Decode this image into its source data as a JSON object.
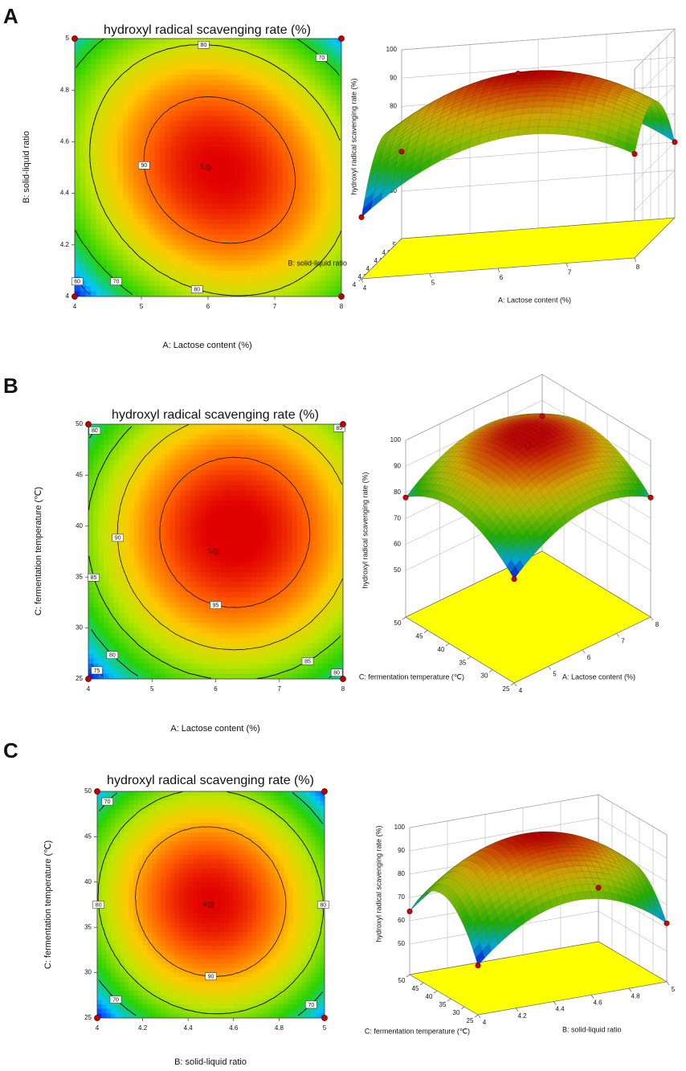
{
  "chart_data": [
    {
      "type": "contour",
      "panel": "A",
      "title": "hydroxyl radical scavenging rate (%)",
      "xlabel": "A: Lactose content (%)",
      "ylabel": "B: solid-liquid ratio",
      "xlim": [
        4,
        8
      ],
      "ylim": [
        4,
        5
      ],
      "xticks": [
        4,
        5,
        6,
        7,
        8
      ],
      "yticks": [
        4,
        4.2,
        4.4,
        4.6,
        4.8,
        5
      ],
      "points": {
        "x": [
          4,
          8,
          4,
          8,
          6
        ],
        "y": [
          4,
          4,
          5,
          5,
          4.5
        ],
        "z": [
          55,
          70,
          64,
          60,
          95
        ]
      },
      "center_label": "5",
      "contour_labels": [
        80,
        70,
        90,
        80,
        70,
        60
      ]
    },
    {
      "type": "surface",
      "xlabel": "A: Lactose content (%)",
      "ylabel": "B: solid-liquid ratio",
      "zlabel": "hydroxyl radical scavenging rate (%)",
      "xlim": [
        4,
        8
      ],
      "ylim": [
        4,
        5
      ],
      "zlim": [
        50,
        100
      ],
      "xticks": [
        4,
        5,
        6,
        7,
        8
      ],
      "yticks": [
        4,
        4.2,
        4.4,
        4.6,
        4.8,
        5
      ],
      "zticks": [
        50,
        60,
        70,
        80,
        90,
        100
      ],
      "points": {
        "x": [
          4,
          8,
          4,
          8,
          6
        ],
        "y": [
          4,
          4,
          5,
          5,
          4.5
        ],
        "z": [
          55,
          70,
          64,
          60,
          95
        ]
      }
    },
    {
      "type": "contour",
      "panel": "B",
      "title": "hydroxyl radical scavenging rate (%)",
      "xlabel": "A: Lactose content (%)",
      "ylabel": "C: fermentation temperature (℃)",
      "xlim": [
        4,
        8
      ],
      "ylim": [
        25,
        50
      ],
      "xticks": [
        4,
        5,
        6,
        7,
        8
      ],
      "yticks": [
        25,
        30,
        35,
        40,
        45,
        50
      ],
      "points": {
        "x": [
          4,
          8,
          4,
          8,
          6
        ],
        "y": [
          25,
          25,
          50,
          50,
          37.5
        ],
        "z": [
          72,
          78,
          78,
          84,
          98
        ]
      },
      "center_label": "5",
      "contour_labels": [
        80,
        85,
        90,
        85,
        95,
        80,
        75,
        85,
        80
      ]
    },
    {
      "type": "surface",
      "xlabel": "A: Lactose content (%)",
      "ylabel": "C: fermentation temperature (℃)",
      "zlabel": "hydroxyl radical scavenging rate (%)",
      "xlim": [
        4,
        8
      ],
      "ylim": [
        25,
        50
      ],
      "zlim": [
        50,
        100
      ],
      "xticks": [
        4,
        5,
        6,
        7,
        8
      ],
      "yticks": [
        25,
        30,
        35,
        40,
        45,
        50
      ],
      "zticks": [
        50,
        60,
        70,
        80,
        90,
        100
      ],
      "points": {
        "x": [
          4,
          8,
          4,
          8,
          6
        ],
        "y": [
          25,
          25,
          50,
          50,
          37.5
        ],
        "z": [
          72,
          78,
          78,
          84,
          98
        ]
      }
    },
    {
      "type": "contour",
      "panel": "C",
      "title": "hydroxyl radical scavenging rate (%)",
      "xlabel": "B: solid-liquid ratio",
      "ylabel": "C: fermentation temperature (℃)",
      "xlim": [
        4,
        5
      ],
      "ylim": [
        25,
        50
      ],
      "xticks": [
        4,
        4.2,
        4.4,
        4.6,
        4.8,
        5
      ],
      "yticks": [
        25,
        30,
        35,
        40,
        45,
        50
      ],
      "points": {
        "x": [
          4,
          5,
          4,
          5,
          4.5
        ],
        "y": [
          25,
          25,
          50,
          50,
          37.5
        ],
        "z": [
          58,
          62,
          64,
          60,
          98
        ]
      },
      "center_label": "6",
      "contour_labels": [
        70,
        80,
        90,
        80,
        70,
        70
      ]
    },
    {
      "type": "surface",
      "xlabel": "B: solid-liquid ratio",
      "ylabel": "C: fermentation temperature (℃)",
      "zlabel": "hydroxyl radical scavenging rate (%)",
      "xlim": [
        4,
        5
      ],
      "ylim": [
        25,
        50
      ],
      "zlim": [
        50,
        100
      ],
      "xticks": [
        4,
        4.2,
        4.4,
        4.6,
        4.8,
        5
      ],
      "yticks": [
        25,
        30,
        35,
        40,
        45,
        50
      ],
      "zticks": [
        50,
        60,
        70,
        80,
        90,
        100
      ],
      "points": {
        "x": [
          4,
          5,
          4,
          5,
          4.5
        ],
        "y": [
          25,
          25,
          50,
          50,
          37.5
        ],
        "z": [
          58,
          62,
          64,
          60,
          98
        ]
      }
    }
  ]
}
